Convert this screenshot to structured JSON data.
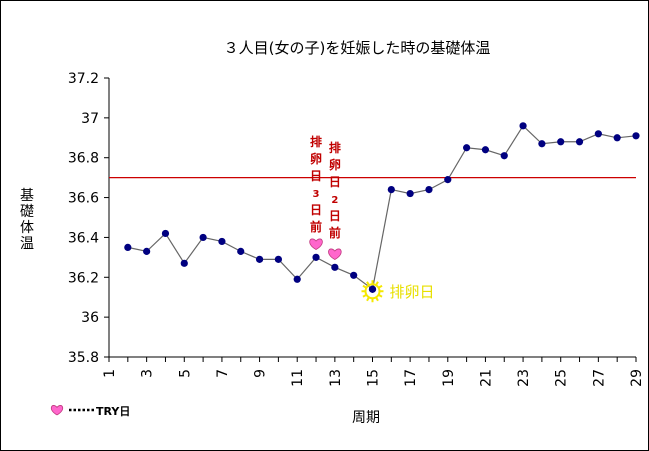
{
  "chart_data": {
    "type": "line",
    "title": "３人目(女の子)を妊娠した時の基礎体温",
    "xlabel": "周期",
    "ylabel": "基礎体温",
    "ylim": [
      35.8,
      37.2
    ],
    "yticks": [
      "35.8",
      "36",
      "36.2",
      "36.4",
      "36.6",
      "36.8",
      "37",
      "37.2"
    ],
    "xlim": [
      1,
      29
    ],
    "xticks": [
      "1",
      "3",
      "5",
      "7",
      "9",
      "11",
      "13",
      "15",
      "17",
      "19",
      "21",
      "23",
      "25",
      "27",
      "29"
    ],
    "x": [
      2,
      3,
      4,
      5,
      6,
      7,
      8,
      9,
      10,
      11,
      12,
      13,
      14,
      15,
      16,
      17,
      18,
      19,
      20,
      21,
      22,
      23,
      24,
      25,
      26,
      27,
      28,
      29
    ],
    "series": [
      {
        "values": [
          36.35,
          36.33,
          36.42,
          36.27,
          36.4,
          36.38,
          36.33,
          36.29,
          36.29,
          36.19,
          36.3,
          36.25,
          36.21,
          36.14,
          36.64,
          36.62,
          36.64,
          36.69,
          36.85,
          36.84,
          36.81,
          36.96,
          36.87,
          36.88,
          36.88,
          36.92,
          36.9,
          36.91
        ],
        "color": "#000080"
      }
    ],
    "reference_line": {
      "y": 36.7,
      "color": "#cc0000"
    },
    "annotations": [
      {
        "label_chars": [
          "排",
          "卵",
          "日",
          "3",
          "日",
          "前"
        ],
        "x": 12,
        "marker": "heart-icon"
      },
      {
        "label_chars": [
          "排",
          "卵",
          "日",
          "2",
          "日",
          "前"
        ],
        "x": 13,
        "marker": "heart-icon"
      },
      {
        "label": "排卵日",
        "x": 15,
        "marker": "sun-icon"
      }
    ],
    "legend": {
      "marker": "heart-icon",
      "label": "TRY日",
      "placement": "bottom-left"
    },
    "grid": false,
    "colors": {
      "heart": "#ff66cc",
      "sun": "#f5e800",
      "line": "#666666",
      "marker": "#000080",
      "reference": "#cc0000"
    }
  }
}
